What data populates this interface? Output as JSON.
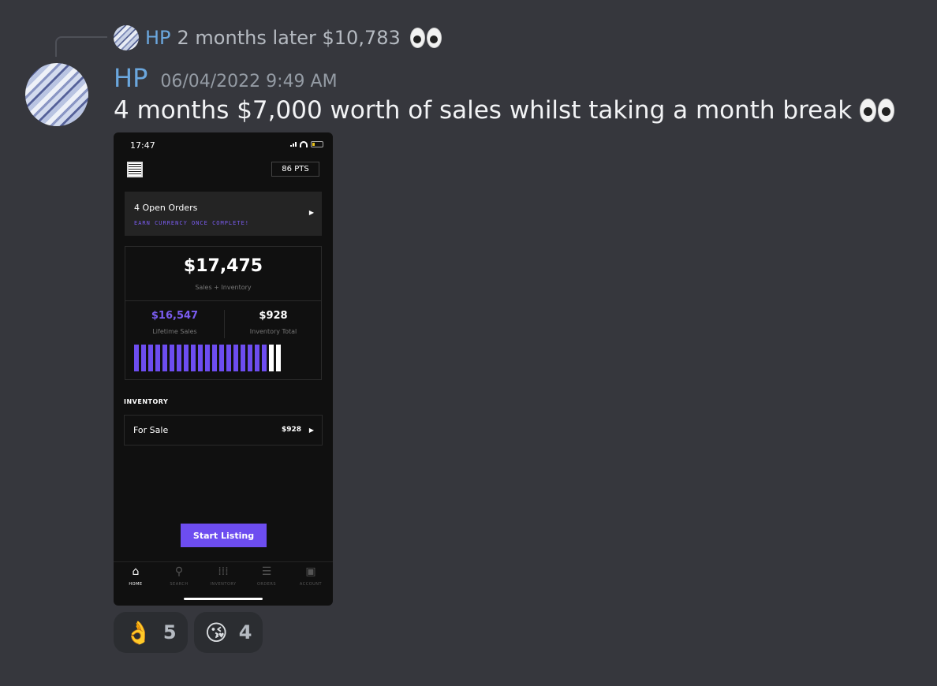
{
  "reply": {
    "username": "HP",
    "text": "2 months later $10,783"
  },
  "message": {
    "username": "HP",
    "timestamp": "06/04/2022 9:49 AM",
    "text": "4 months $7,000 worth of sales whilst taking a month break"
  },
  "phone": {
    "status_time": "17:47",
    "points": "86 PTS",
    "open_orders": {
      "title": "4 Open Orders",
      "subtitle": "EARN CURRENCY ONCE COMPLETE!"
    },
    "total": {
      "value": "$17,475",
      "label": "Sales + Inventory"
    },
    "lifetime_sales": {
      "value": "$16,547",
      "label": "Lifetime Sales"
    },
    "inventory_total": {
      "value": "$928",
      "label": "Inventory Total"
    },
    "bar_split": {
      "purple_bars": 19,
      "white_bars": 2
    },
    "inventory_section_label": "INVENTORY",
    "for_sale": {
      "label": "For Sale",
      "value": "$928"
    },
    "start_button": "Start Listing",
    "tabs": [
      {
        "label": "HOME",
        "icon": "home-icon",
        "active": true
      },
      {
        "label": "SEARCH",
        "icon": "search-icon",
        "active": false
      },
      {
        "label": "INVENTORY",
        "icon": "grid-icon",
        "active": false
      },
      {
        "label": "ORDERS",
        "icon": "list-icon",
        "active": false
      },
      {
        "label": "ACCOUNT",
        "icon": "account-icon",
        "active": false
      }
    ]
  },
  "reactions": [
    {
      "emoji": "👌",
      "count": "5"
    },
    {
      "emoji": "😘",
      "count": "4"
    }
  ],
  "colors": {
    "accent_purple": "#6d4df0",
    "username_blue": "#6ba7de",
    "background": "#36373d"
  }
}
